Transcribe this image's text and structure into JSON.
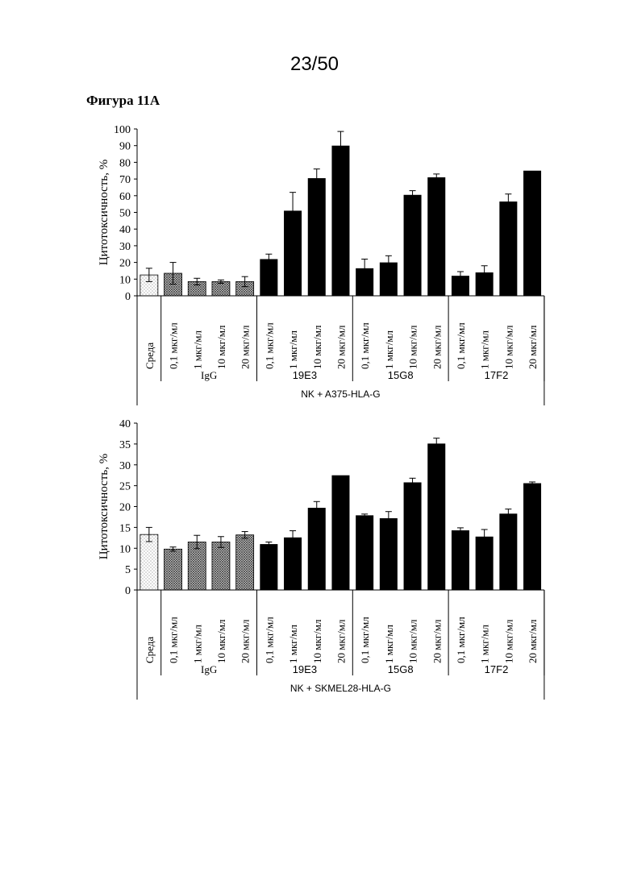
{
  "page_number": "23/50",
  "figure_label": "Фигура 11А",
  "chart_data": [
    {
      "type": "bar",
      "ylabel": "Цитотоксичность, %",
      "ylim": [
        0,
        100
      ],
      "yticks": [
        0,
        10,
        20,
        30,
        40,
        50,
        60,
        70,
        80,
        90,
        100
      ],
      "categories": [
        "Среда",
        "0,1 мкг/мл",
        "1 мкг/мл",
        "10 мкг/мл",
        "20 мкг/мл",
        "0,1 мкг/мл",
        "1 мкг/мл",
        "10 мкг/мл",
        "20 мкг/мл",
        "0,1 мкг/мл",
        "1 мкг/мл",
        "10 мкг/мл",
        "20 мкг/мл",
        "0,1 мкг/мл",
        "1 мкг/мл",
        "10 мкг/мл",
        "20 мкг/мл"
      ],
      "values": [
        12.5,
        13.5,
        8.5,
        8.5,
        8.5,
        22,
        51,
        70.5,
        90,
        16.5,
        20,
        60.5,
        71,
        12,
        14,
        56.5,
        75
      ],
      "errors": [
        4,
        6.5,
        2,
        1,
        3,
        3,
        11,
        5.5,
        8.5,
        5.5,
        4,
        2.5,
        2,
        2.5,
        4,
        4.5,
        0
      ],
      "fills": [
        "dots",
        "cross",
        "cross",
        "cross",
        "cross",
        "solid",
        "solid",
        "solid",
        "solid",
        "solid",
        "solid",
        "solid",
        "solid",
        "solid",
        "solid",
        "solid",
        "solid"
      ],
      "groups": [
        {
          "label": "IgG",
          "start": 1,
          "end": 4
        },
        {
          "label": "19E3",
          "start": 5,
          "end": 8
        },
        {
          "label": "15G8",
          "start": 9,
          "end": 12
        },
        {
          "label": "17F2",
          "start": 13,
          "end": 16
        }
      ],
      "xlabel": "NK + A375-HLA-G"
    },
    {
      "type": "bar",
      "ylabel": "Цитотоксичность, %",
      "ylim": [
        0,
        40
      ],
      "yticks": [
        0,
        5,
        10,
        15,
        20,
        25,
        30,
        35,
        40
      ],
      "categories": [
        "Среда",
        "0,1 мкг/мл",
        "1 мкг/мл",
        "10 мкг/мл",
        "20 мкг/мл",
        "0,1 мкг/мл",
        "1 мкг/мл",
        "10 мкг/мл",
        "20 мкг/мл",
        "0,1 мкг/мл",
        "1 мкг/мл",
        "10 мкг/мл",
        "20 мкг/мл",
        "0,1 мкг/мл",
        "1 мкг/мл",
        "10 мкг/мл",
        "20 мкг/мл"
      ],
      "values": [
        13.3,
        9.8,
        11.5,
        11.5,
        13.2,
        11,
        12.6,
        19.7,
        27.5,
        17.9,
        17.2,
        25.8,
        35.1,
        14.3,
        12.8,
        18.3,
        25.6
      ],
      "errors": [
        1.7,
        0.5,
        1.6,
        1.3,
        0.8,
        0.5,
        1.6,
        1.5,
        0,
        0.3,
        1.6,
        1.0,
        1.3,
        0.6,
        1.7,
        1.1,
        0.3
      ],
      "fills": [
        "dots",
        "cross",
        "cross",
        "cross",
        "cross",
        "solid",
        "solid",
        "solid",
        "solid",
        "solid",
        "solid",
        "solid",
        "solid",
        "solid",
        "solid",
        "solid",
        "solid"
      ],
      "groups": [
        {
          "label": "IgG",
          "start": 1,
          "end": 4
        },
        {
          "label": "19E3",
          "start": 5,
          "end": 8
        },
        {
          "label": "15G8",
          "start": 9,
          "end": 12
        },
        {
          "label": "17F2",
          "start": 13,
          "end": 16
        }
      ],
      "xlabel": "NK + SKMEL28-HLA-G"
    }
  ]
}
